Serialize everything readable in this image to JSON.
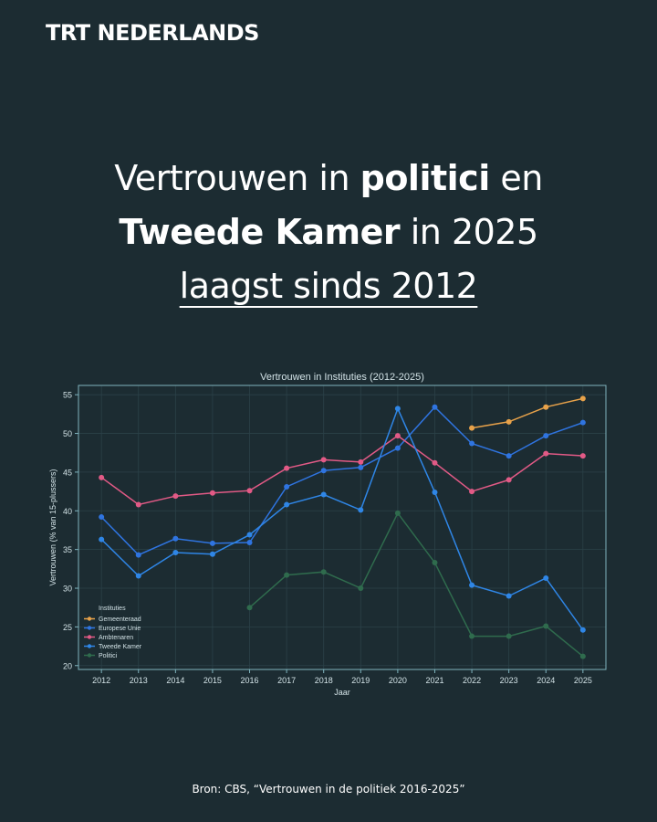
{
  "brand": "TRT NEDERLANDS",
  "headline": {
    "l1_a": "Vertrouwen in ",
    "l1_b": "politici",
    "l1_c": " en",
    "l2_a": "Tweede Kamer",
    "l2_b": " in 2025",
    "l3": "laagst sinds 2012"
  },
  "source": "Bron: CBS, “Vertrouwen in de politiek 2016-2025”",
  "colors": {
    "background": "#1c2c32",
    "grid": "#2b4148",
    "axis": "#7fb4be",
    "text": "#d2e2e6"
  },
  "chart_data": {
    "type": "line",
    "title": "Vertrouwen in Instituties (2012-2025)",
    "xlabel": "Jaar",
    "ylabel": "Vertrouwen (% van 15-plussers)",
    "x": [
      2012,
      2013,
      2014,
      2015,
      2016,
      2017,
      2018,
      2019,
      2020,
      2021,
      2022,
      2023,
      2024,
      2025
    ],
    "ylim": [
      19.5,
      56.2
    ],
    "yticks": [
      20,
      25,
      30,
      35,
      40,
      45,
      50,
      55
    ],
    "grid": true,
    "legend_title": "Instituties",
    "legend_position": "lower-left",
    "series": [
      {
        "name": "Gemeenteraad",
        "color": "#e8a24a",
        "values": [
          null,
          null,
          null,
          null,
          null,
          null,
          null,
          null,
          null,
          null,
          50.7,
          51.5,
          53.4,
          54.5
        ]
      },
      {
        "name": "Europese Unie",
        "color": "#2f74e0",
        "values": [
          39.2,
          34.3,
          36.4,
          35.8,
          35.9,
          43.1,
          45.2,
          45.6,
          48.1,
          53.4,
          48.7,
          47.1,
          49.7,
          51.4
        ]
      },
      {
        "name": "Ambtenaren",
        "color": "#e25a86",
        "values": [
          44.3,
          40.8,
          41.9,
          42.3,
          42.6,
          45.5,
          46.6,
          46.3,
          49.7,
          46.2,
          42.5,
          44.0,
          47.4,
          47.1
        ]
      },
      {
        "name": "Tweede Kamer",
        "color": "#2f86e6",
        "values": [
          36.3,
          31.6,
          34.6,
          34.4,
          36.9,
          40.8,
          42.1,
          40.1,
          53.2,
          42.4,
          30.4,
          29.0,
          31.3,
          24.6
        ]
      },
      {
        "name": "Politici",
        "color": "#2f6b4d",
        "values": [
          null,
          null,
          null,
          null,
          27.5,
          31.7,
          32.1,
          30.0,
          39.7,
          33.3,
          23.8,
          23.8,
          25.1,
          21.2
        ]
      }
    ]
  }
}
